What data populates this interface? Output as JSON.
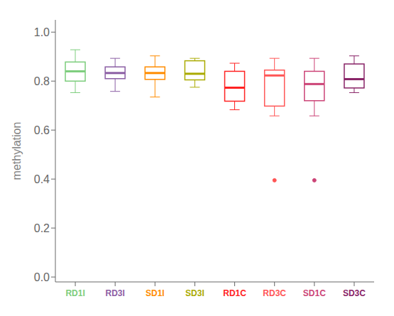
{
  "chart_data": {
    "type": "box",
    "categories": [
      "RD1I",
      "RD3I",
      "SD1I",
      "SD3I",
      "RD1C",
      "RD3C",
      "SD1C",
      "SD3C"
    ],
    "colors": [
      "#7CCD7C",
      "#8B5EA4",
      "#FF8C00",
      "#AAAA00",
      "#FF2222",
      "#FF5555",
      "#CC4477",
      "#882266"
    ],
    "ylabel": "methylation",
    "ylim": [
      -0.02,
      1.05
    ],
    "yticks": [
      {
        "value": 0.0,
        "label": "0.0"
      },
      0.2,
      0.4,
      0.6,
      0.8,
      {
        "value": 1.0,
        "label": "1.0"
      }
    ],
    "q1": [
      0.8,
      0.81,
      0.807,
      0.805,
      0.718,
      0.698,
      0.72,
      0.772
    ],
    "median": [
      0.84,
      0.833,
      0.833,
      0.83,
      0.773,
      0.823,
      0.788,
      0.808
    ],
    "q3": [
      0.878,
      0.858,
      0.858,
      0.883,
      0.84,
      0.845,
      0.84,
      0.87
    ],
    "whislo": [
      0.753,
      0.758,
      0.735,
      0.775,
      0.683,
      0.658,
      0.658,
      0.753
    ],
    "whishi": [
      0.928,
      0.893,
      0.903,
      0.893,
      0.873,
      0.893,
      0.893,
      0.903
    ],
    "fliers": [
      [],
      [],
      [],
      [],
      [],
      [
        0.395
      ],
      [
        0.395
      ],
      []
    ],
    "grid": false
  }
}
